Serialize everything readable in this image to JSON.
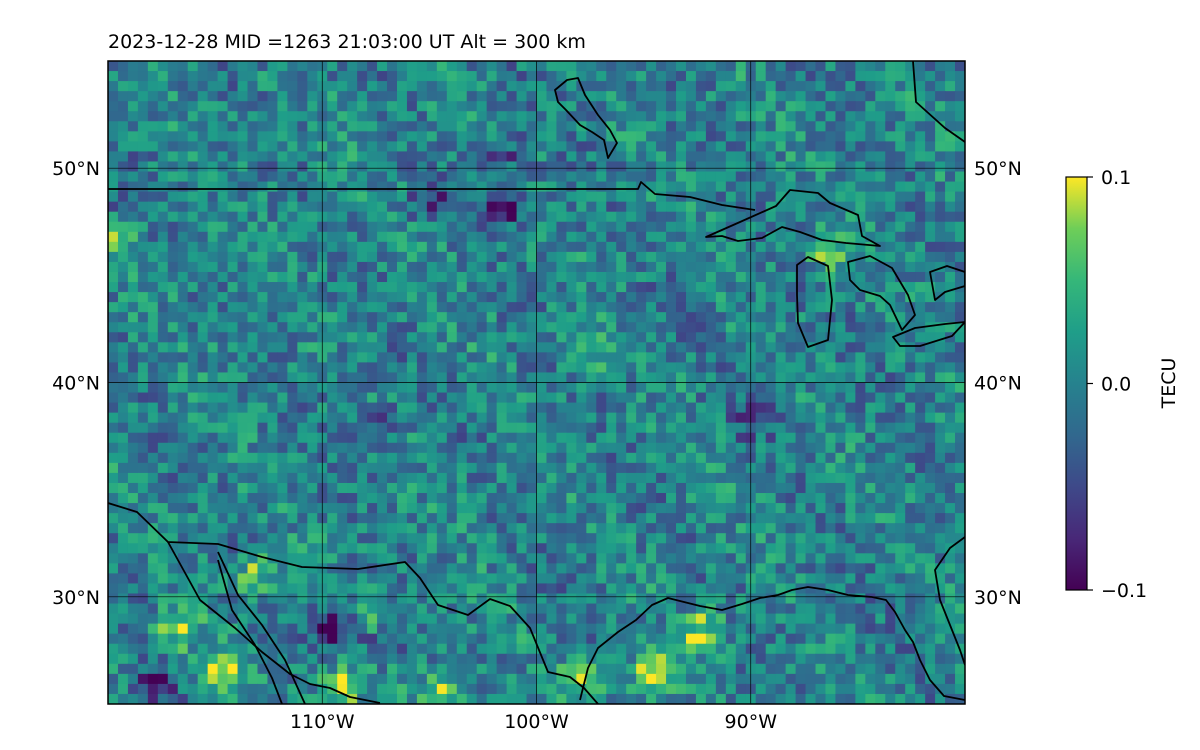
{
  "title": "2023-12-28  MID =1263    21:03:00  UT  Alt = 300 km",
  "chart_data": {
    "type": "heatmap",
    "title": "2023-12-28  MID =1263    21:03:00  UT  Alt = 300 km",
    "x_range_deg": [
      -120,
      -80
    ],
    "y_range_deg": [
      25,
      55
    ],
    "x_ticks": [
      {
        "value": -110,
        "label": "110°W"
      },
      {
        "value": -100,
        "label": "100°W"
      },
      {
        "value": -90,
        "label": "90°W"
      }
    ],
    "y_ticks": [
      {
        "value": 50,
        "label": "50°N"
      },
      {
        "value": 40,
        "label": "40°N"
      },
      {
        "value": 30,
        "label": "30°N"
      }
    ],
    "grid": true,
    "colormap": "viridis",
    "colorbar": {
      "label": "TECU",
      "min": -0.1,
      "max": 0.1,
      "ticks": [
        {
          "value": 0.1,
          "label": "0.1"
        },
        {
          "value": 0.0,
          "label": "0.0"
        },
        {
          "value": -0.1,
          "label": "−0.1"
        }
      ]
    },
    "hotspots": [
      {
        "lon": -114.8,
        "lat": 26.5,
        "value": 0.1
      },
      {
        "lon": -109,
        "lat": 25.8,
        "value": 0.1
      },
      {
        "lon": -107.4,
        "lat": 28.8,
        "value": 0.09
      },
      {
        "lon": -104.3,
        "lat": 25.6,
        "value": 0.08
      },
      {
        "lon": -97.8,
        "lat": 26.2,
        "value": 0.07
      },
      {
        "lon": -94.6,
        "lat": 26.3,
        "value": 0.1
      },
      {
        "lon": -92.2,
        "lat": 28.4,
        "value": 0.08
      },
      {
        "lon": -116.8,
        "lat": 28.4,
        "value": 0.07
      },
      {
        "lon": -113.0,
        "lat": 31.0,
        "value": 0.07
      },
      {
        "lon": -97.5,
        "lat": 41.6,
        "value": 0.06
      },
      {
        "lon": -119.8,
        "lat": 47.3,
        "value": 0.08
      },
      {
        "lon": -86.5,
        "lat": 46.0,
        "value": 0.05
      }
    ],
    "coldspots": [
      {
        "lon": -109.5,
        "lat": 28.5,
        "value": -0.1
      },
      {
        "lon": -107.3,
        "lat": 28.2,
        "value": -0.09
      },
      {
        "lon": -118.0,
        "lat": 25.8,
        "value": -0.08
      },
      {
        "lon": -101.4,
        "lat": 48.2,
        "value": -0.09
      },
      {
        "lon": -104.8,
        "lat": 48.5,
        "value": -0.07
      },
      {
        "lon": -119.5,
        "lat": 48.0,
        "value": -0.07
      },
      {
        "lon": -107.5,
        "lat": 38.0,
        "value": -0.05
      },
      {
        "lon": -90.0,
        "lat": 38.4,
        "value": -0.05
      },
      {
        "lon": -101.7,
        "lat": 50.6,
        "value": -0.06
      }
    ]
  }
}
